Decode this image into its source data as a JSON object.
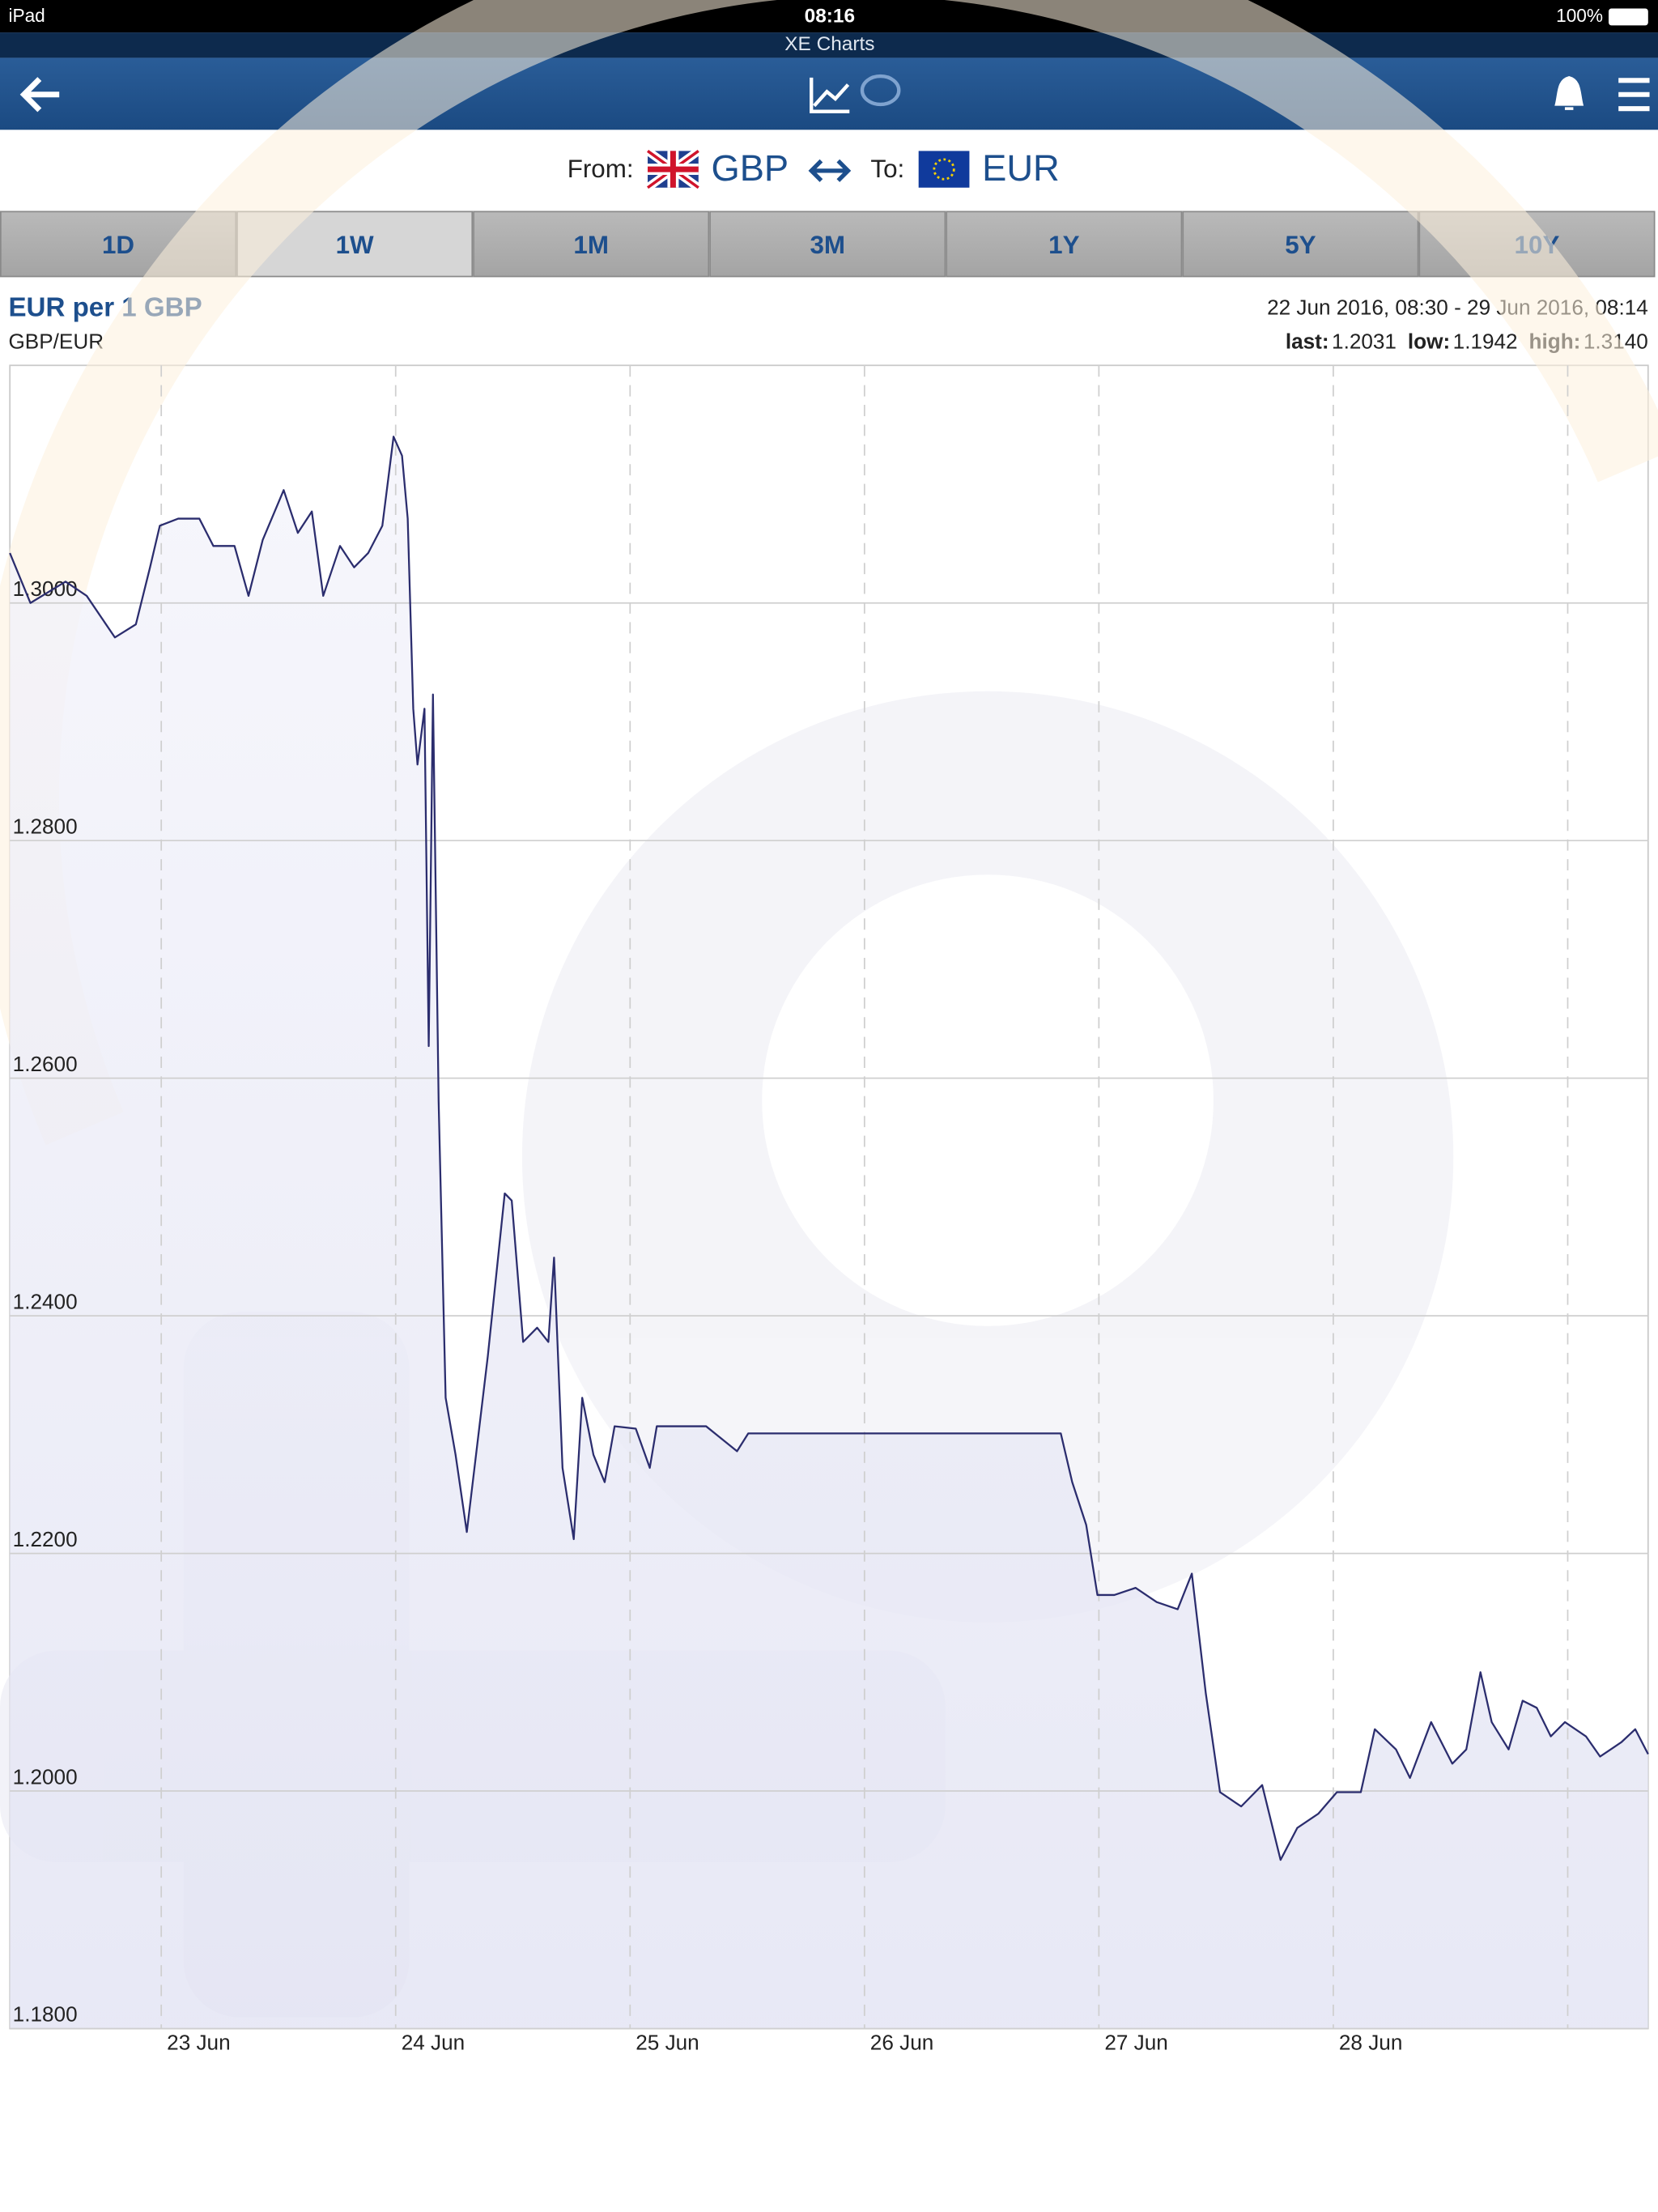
{
  "ui": {
    "status": {
      "device": "iPad",
      "time": "08:16",
      "battery": "100%"
    },
    "app_title": "XE Charts",
    "from_label": "From:",
    "from_currency": "GBP",
    "to_label": "To:",
    "to_currency": "EUR",
    "tabs": [
      {
        "label": "1D",
        "selected": false
      },
      {
        "label": "1W",
        "selected": true
      },
      {
        "label": "1M",
        "selected": false
      },
      {
        "label": "3M",
        "selected": false
      },
      {
        "label": "1Y",
        "selected": false
      },
      {
        "label": "5Y",
        "selected": false
      },
      {
        "label": "10Y",
        "selected": false
      }
    ]
  },
  "chart_data": {
    "type": "line",
    "title": "EUR per 1 GBP",
    "subtitle": "GBP/EUR",
    "range_text": "22 Jun 2016, 08:30 - 29 Jun 2016, 08:14",
    "stats": {
      "labels": [
        "last:",
        "low:",
        "high:"
      ],
      "values": [
        1.2031,
        1.1942,
        1.314
      ],
      "value_labels": [
        "1.2031",
        "1.1942",
        "1.3140"
      ]
    },
    "x": [
      "2016-06-22T08:30",
      "2016-06-22T10:36",
      "2016-06-22T14:12",
      "2016-06-22T16:22",
      "2016-06-22T19:15",
      "2016-06-22T21:24",
      "2016-06-22T22:51",
      "2016-06-22T23:51",
      "2016-06-23T01:44",
      "2016-06-23T03:54",
      "2016-06-23T05:20",
      "2016-06-23T07:30",
      "2016-06-23T08:56",
      "2016-06-23T10:23",
      "2016-06-23T12:32",
      "2016-06-23T13:59",
      "2016-06-23T15:25",
      "2016-06-23T16:35",
      "2016-06-23T18:18",
      "2016-06-23T19:45",
      "2016-06-23T21:11",
      "2016-06-23T22:38",
      "2016-06-23T23:47",
      "2016-06-24T00:39",
      "2016-06-24T01:14",
      "2016-06-24T01:48",
      "2016-06-24T02:14",
      "2016-06-24T02:57",
      "2016-06-24T03:23",
      "2016-06-24T03:49",
      "2016-06-24T04:24",
      "2016-06-24T05:07",
      "2016-06-24T06:08",
      "2016-06-24T07:17",
      "2016-06-24T09:26",
      "2016-06-24T11:10",
      "2016-06-24T11:53",
      "2016-06-24T13:03",
      "2016-06-24T14:29",
      "2016-06-24T15:38",
      "2016-06-24T16:13",
      "2016-06-24T17:05",
      "2016-06-24T18:14",
      "2016-06-24T19:06",
      "2016-06-24T20:15",
      "2016-06-24T21:24",
      "2016-06-24T22:25",
      "2016-06-25T00:35",
      "2016-06-25T02:01",
      "2016-06-25T02:44",
      "2016-06-25T07:47",
      "2016-06-25T10:57",
      "2016-06-25T12:06",
      "2016-06-25T22:12",
      "2016-06-26T12:37",
      "2016-06-26T20:06",
      "2016-06-26T21:16",
      "2016-06-26T22:42",
      "2016-06-26T23:51",
      "2016-06-27T01:35",
      "2016-06-27T03:45",
      "2016-06-27T05:55",
      "2016-06-27T08:04",
      "2016-06-27T09:31",
      "2016-06-27T10:57",
      "2016-06-27T12:24",
      "2016-06-27T14:34",
      "2016-06-27T16:43",
      "2016-06-27T18:36",
      "2016-06-27T20:19",
      "2016-06-27T22:29",
      "2016-06-28T00:22",
      "2016-06-28T02:49",
      "2016-06-28T04:15",
      "2016-06-28T06:25",
      "2016-06-28T07:51",
      "2016-06-28T10:01",
      "2016-06-28T12:11",
      "2016-06-28T13:37",
      "2016-06-28T15:04",
      "2016-06-28T16:13",
      "2016-06-28T17:57",
      "2016-06-28T19:23",
      "2016-06-28T20:50",
      "2016-06-28T22:16",
      "2016-06-28T23:43",
      "2016-06-29T01:52",
      "2016-06-29T03:19",
      "2016-06-29T05:29",
      "2016-06-29T06:55",
      "2016-06-29T08:14"
    ],
    "series": [
      {
        "color": "#2b2d6e",
        "values": [
          1.3042,
          1.3,
          1.3018,
          1.3006,
          1.2971,
          1.2982,
          1.303,
          1.3065,
          1.3071,
          1.3071,
          1.3048,
          1.3048,
          1.3006,
          1.3053,
          1.3095,
          1.3059,
          1.3077,
          1.3006,
          1.3048,
          1.303,
          1.3042,
          1.3065,
          1.314,
          1.3124,
          1.3071,
          1.2911,
          1.2864,
          1.2911,
          1.2627,
          1.2923,
          1.258,
          1.2331,
          1.2283,
          1.2218,
          1.2366,
          1.2503,
          1.2497,
          1.2378,
          1.239,
          1.2378,
          1.2449,
          1.2272,
          1.2212,
          1.2331,
          1.2283,
          1.226,
          1.2307,
          1.2305,
          1.2272,
          1.2307,
          1.2307,
          1.2286,
          1.2301,
          1.2301,
          1.2301,
          1.2301,
          1.226,
          1.2224,
          1.2165,
          1.2165,
          1.2171,
          1.2159,
          1.2153,
          1.2183,
          1.2082,
          1.1999,
          1.1987,
          1.2005,
          1.1942,
          1.1969,
          1.1981,
          1.1999,
          1.1999,
          1.2052,
          1.2035,
          1.2011,
          1.2058,
          1.2023,
          1.2035,
          1.21,
          1.2058,
          1.2035,
          1.2076,
          1.207,
          1.2046,
          1.2058,
          1.2046,
          1.2029,
          1.2041,
          1.2052,
          1.2031
        ]
      }
    ],
    "xlim": [
      "2016-06-22T08:30",
      "2016-06-29T08:14"
    ],
    "xticks": [
      {
        "value": "2016-06-23T00:00",
        "label": "23 Jun"
      },
      {
        "value": "2016-06-24T00:00",
        "label": "24 Jun"
      },
      {
        "value": "2016-06-25T00:00",
        "label": "25 Jun"
      },
      {
        "value": "2016-06-26T00:00",
        "label": "26 Jun"
      },
      {
        "value": "2016-06-27T00:00",
        "label": "27 Jun"
      },
      {
        "value": "2016-06-28T00:00",
        "label": "28 Jun"
      },
      {
        "value": "2016-06-29T00:00",
        "label": null
      }
    ],
    "ylim": [
      1.18,
      1.32
    ],
    "yticks": [
      {
        "value": 1.18,
        "label": "1.1800"
      },
      {
        "value": 1.2,
        "label": "1.2000"
      },
      {
        "value": 1.22,
        "label": "1.2200"
      },
      {
        "value": 1.24,
        "label": "1.2400"
      },
      {
        "value": 1.26,
        "label": "1.2600"
      },
      {
        "value": 1.28,
        "label": "1.2800"
      },
      {
        "value": 1.3,
        "label": "1.3000"
      }
    ],
    "grid": true
  }
}
